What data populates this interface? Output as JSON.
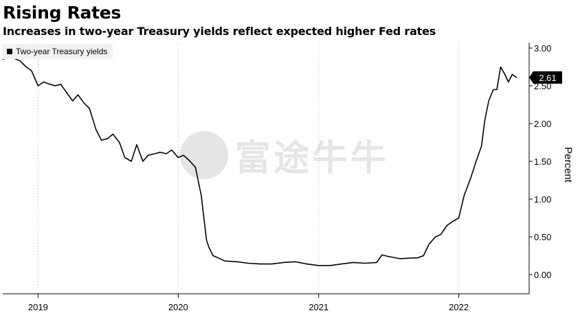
{
  "title": "Rising Rates",
  "subtitle": "Increases in two-year Treasury yields reflect expected higher Fed rates",
  "watermark_text": "富途牛牛",
  "chart_data": {
    "type": "line",
    "ylabel": "Percent",
    "ylim": [
      0,
      3
    ],
    "y_ticks": [
      "0.00",
      "0.50",
      "1.00",
      "1.50",
      "2.00",
      "2.50",
      "3.00"
    ],
    "x_ticks": [
      "2019",
      "2020",
      "2021",
      "2022"
    ],
    "legend": "top-left",
    "grid": "vertical dotted",
    "last_value_label": "2.61",
    "series": [
      {
        "name": "Two-year Treasury yields",
        "color": "#000000",
        "x": [
          "2018-10-01",
          "2018-10-15",
          "2018-11-01",
          "2018-11-15",
          "2018-12-01",
          "2018-12-15",
          "2019-01-01",
          "2019-01-15",
          "2019-02-01",
          "2019-02-15",
          "2019-03-01",
          "2019-03-15",
          "2019-04-01",
          "2019-04-15",
          "2019-05-01",
          "2019-05-15",
          "2019-06-01",
          "2019-06-15",
          "2019-07-01",
          "2019-07-15",
          "2019-08-01",
          "2019-08-15",
          "2019-09-01",
          "2019-09-15",
          "2019-10-01",
          "2019-10-15",
          "2019-11-01",
          "2019-11-15",
          "2019-12-01",
          "2019-12-15",
          "2020-01-01",
          "2020-01-15",
          "2020-02-01",
          "2020-02-15",
          "2020-03-01",
          "2020-03-08",
          "2020-03-15",
          "2020-03-22",
          "2020-04-01",
          "2020-04-15",
          "2020-05-01",
          "2020-06-01",
          "2020-07-01",
          "2020-08-01",
          "2020-09-01",
          "2020-10-01",
          "2020-11-01",
          "2020-12-01",
          "2021-01-01",
          "2021-02-01",
          "2021-02-15",
          "2021-03-01",
          "2021-04-01",
          "2021-05-01",
          "2021-06-01",
          "2021-06-15",
          "2021-07-01",
          "2021-08-01",
          "2021-09-01",
          "2021-09-15",
          "2021-10-01",
          "2021-10-15",
          "2021-11-01",
          "2021-11-15",
          "2021-12-01",
          "2021-12-15",
          "2022-01-01",
          "2022-01-15",
          "2022-02-01",
          "2022-02-15",
          "2022-03-01",
          "2022-03-10",
          "2022-03-20",
          "2022-04-01",
          "2022-04-10",
          "2022-04-20",
          "2022-05-01",
          "2022-05-10",
          "2022-05-20",
          "2022-06-01"
        ],
        "values": [
          2.85,
          2.88,
          2.86,
          2.83,
          2.75,
          2.7,
          2.5,
          2.55,
          2.52,
          2.5,
          2.52,
          2.42,
          2.3,
          2.38,
          2.27,
          2.2,
          1.92,
          1.78,
          1.8,
          1.86,
          1.75,
          1.55,
          1.5,
          1.72,
          1.5,
          1.58,
          1.6,
          1.62,
          1.6,
          1.65,
          1.55,
          1.58,
          1.5,
          1.42,
          1.05,
          0.75,
          0.45,
          0.35,
          0.25,
          0.22,
          0.18,
          0.17,
          0.15,
          0.14,
          0.14,
          0.16,
          0.17,
          0.14,
          0.12,
          0.12,
          0.13,
          0.14,
          0.16,
          0.15,
          0.16,
          0.26,
          0.24,
          0.21,
          0.22,
          0.22,
          0.25,
          0.4,
          0.5,
          0.53,
          0.65,
          0.7,
          0.75,
          1.05,
          1.28,
          1.5,
          1.7,
          2.05,
          2.3,
          2.45,
          2.45,
          2.75,
          2.65,
          2.55,
          2.65,
          2.61
        ]
      }
    ]
  }
}
